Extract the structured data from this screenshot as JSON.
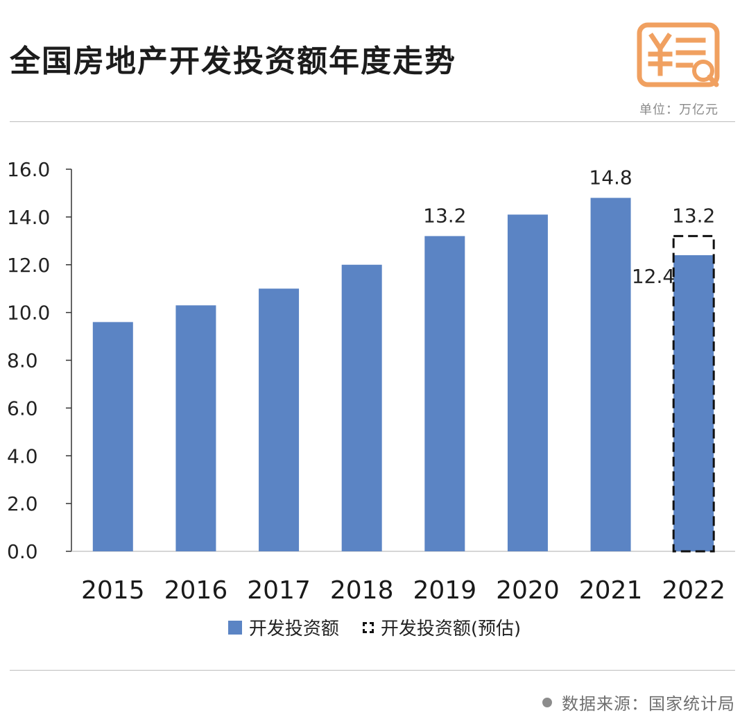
{
  "header": {
    "title": "全国房地产开发投资额年度走势",
    "unit": "单位：万亿元",
    "icon": "yuan-document-search-icon",
    "icon_color": "#f0a060"
  },
  "legend": {
    "solid_label": "开发投资额",
    "dashed_label": "开发投资额(预估)"
  },
  "footer": {
    "source": "数据来源：国家统计局"
  },
  "colors": {
    "bar": "#5b84c4",
    "axis": "#333333",
    "dashed": "#111111"
  },
  "chart_data": {
    "type": "bar",
    "title": "全国房地产开发投资额年度走势",
    "xlabel": "",
    "ylabel": "",
    "categories": [
      "2015",
      "2016",
      "2017",
      "2018",
      "2019",
      "2020",
      "2021",
      "2022"
    ],
    "series": [
      {
        "values": [
          9.6,
          10.3,
          11.0,
          12.0,
          13.2,
          14.1,
          14.8,
          12.4
        ]
      },
      {
        "values": [
          null,
          null,
          null,
          null,
          null,
          null,
          null,
          13.2
        ]
      }
    ],
    "data_labels": [
      null,
      null,
      null,
      null,
      "13.2",
      null,
      "14.8",
      "12.4"
    ],
    "estimate_label": "13.2",
    "ylim": [
      0,
      16
    ],
    "yticks": [
      "0.0",
      "2.0",
      "4.0",
      "6.0",
      "8.0",
      "10.0",
      "12.0",
      "14.0",
      "16.0"
    ],
    "grid": false,
    "legend_position": "bottom"
  }
}
